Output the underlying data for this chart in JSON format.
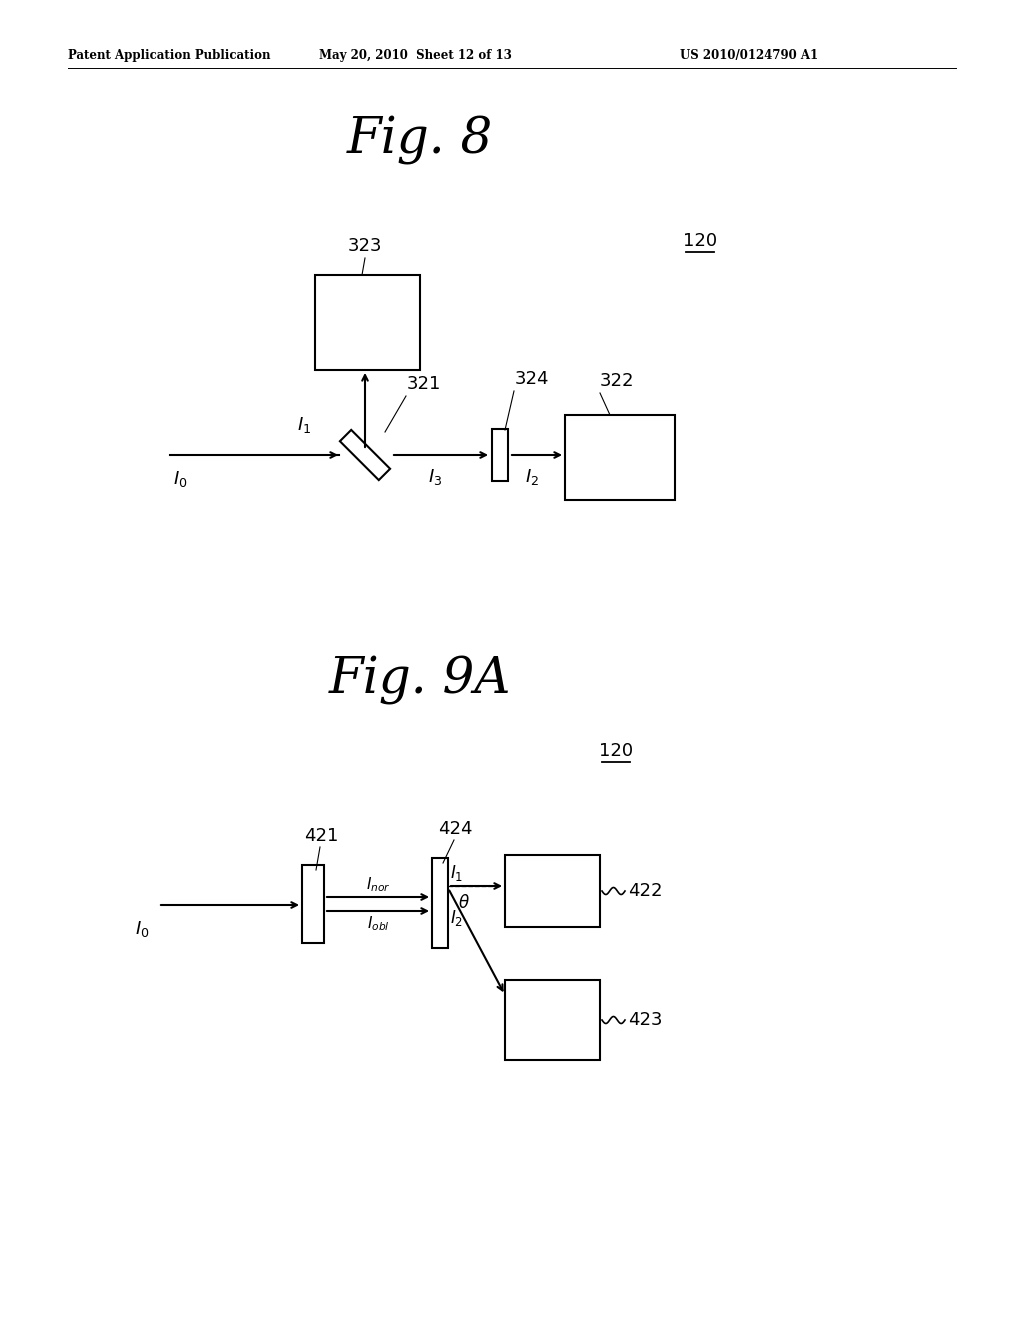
{
  "bg_color": "#ffffff",
  "header_left": "Patent Application Publication",
  "header_mid": "May 20, 2010  Sheet 12 of 13",
  "header_right": "US 2010/0124790 A1",
  "fig8_title": "Fig. 8",
  "fig9a_title": "Fig. 9A",
  "fig8_label120": "120",
  "fig9a_label120": "120",
  "line_color": "#000000",
  "lw": 1.5
}
